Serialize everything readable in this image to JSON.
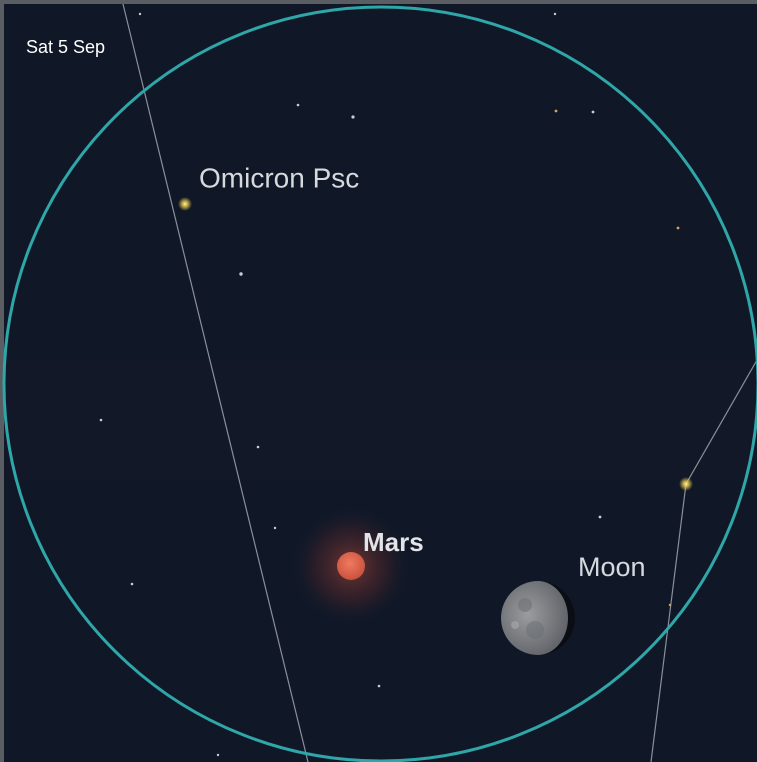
{
  "header": {
    "date": "Sat 5 Sep"
  },
  "objects": [
    {
      "label": "Omicron Psc"
    },
    {
      "label": "Mars"
    },
    {
      "label": "Moon"
    }
  ]
}
